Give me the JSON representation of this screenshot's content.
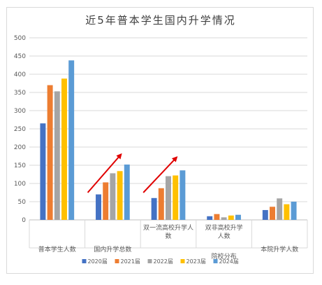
{
  "chart_data": {
    "type": "bar",
    "title": "近5年普本学生国内升学情况",
    "ylim": [
      0,
      500
    ],
    "yticks": [
      0,
      50,
      100,
      150,
      200,
      250,
      300,
      350,
      400,
      450,
      500
    ],
    "grid": true,
    "legend_position": "bottom",
    "categories": [
      {
        "lines": [
          "普本学生人数"
        ]
      },
      {
        "lines": [
          "国内升学总数"
        ]
      },
      {
        "lines": [
          "双一流高校升学人",
          "数"
        ]
      },
      {
        "lines": [
          "双非高校升学",
          "人数"
        ]
      },
      {
        "lines": [
          "本院升学人数"
        ]
      }
    ],
    "group_label": {
      "text": "院校分布",
      "spans": [
        2,
        4
      ]
    },
    "series": [
      {
        "name": "2020届",
        "color": "#4472C4",
        "values": [
          265,
          70,
          60,
          10,
          27
        ]
      },
      {
        "name": "2021届",
        "color": "#ED7D31",
        "values": [
          370,
          103,
          87,
          16,
          36
        ]
      },
      {
        "name": "2022届",
        "color": "#A5A5A5",
        "values": [
          353,
          128,
          120,
          7,
          59
        ]
      },
      {
        "name": "2023届",
        "color": "#FFC000",
        "values": [
          388,
          134,
          122,
          12,
          43
        ]
      },
      {
        "name": "2024届",
        "color": "#5B9BD5",
        "values": [
          438,
          152,
          136,
          14,
          50
        ]
      }
    ],
    "annotations": [
      {
        "type": "arrow",
        "color": "#E00000",
        "from": {
          "category": 1,
          "value": 75
        },
        "to": {
          "category": 1.6,
          "value": 180
        }
      },
      {
        "type": "arrow",
        "color": "#E00000",
        "from": {
          "category": 2,
          "value": 75
        },
        "to": {
          "category": 2.6,
          "value": 172
        }
      }
    ]
  }
}
